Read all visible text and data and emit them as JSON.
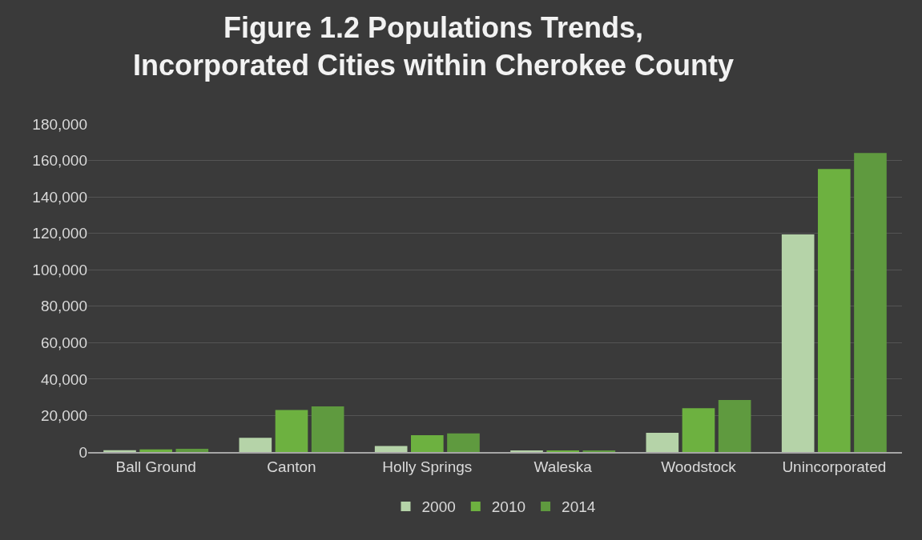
{
  "chart_data": {
    "type": "bar",
    "title": "Figure 1.2 Populations Trends, Incorporated Cities within Cherokee County",
    "categories": [
      "Ball Ground",
      "Canton",
      "Holly Springs",
      "Waleska",
      "Woodstock",
      "Unincorporated"
    ],
    "series": [
      {
        "name": "2000",
        "color": "#b5d3a8",
        "values": [
          1000,
          7800,
          3300,
          500,
          10500,
          119400
        ]
      },
      {
        "name": "2010",
        "color": "#6db140",
        "values": [
          1400,
          23000,
          9200,
          600,
          24000,
          155300
        ]
      },
      {
        "name": "2014",
        "color": "#5f9a3f",
        "values": [
          1800,
          25000,
          10200,
          900,
          28500,
          164100
        ]
      }
    ],
    "ylim": [
      0,
      180000
    ],
    "yticks": [
      {
        "value": 0,
        "label": "0"
      },
      {
        "value": 20000,
        "label": "20,000"
      },
      {
        "value": 40000,
        "label": "40,000"
      },
      {
        "value": 60000,
        "label": "60,000"
      },
      {
        "value": 80000,
        "label": "80,000"
      },
      {
        "value": 100000,
        "label": "100,000"
      },
      {
        "value": 120000,
        "label": "120,000"
      },
      {
        "value": 140000,
        "label": "140,000"
      },
      {
        "value": 160000,
        "label": "160,000"
      },
      {
        "value": 180000,
        "label": "180,000"
      }
    ],
    "grid": "y",
    "legend": "bottom"
  }
}
